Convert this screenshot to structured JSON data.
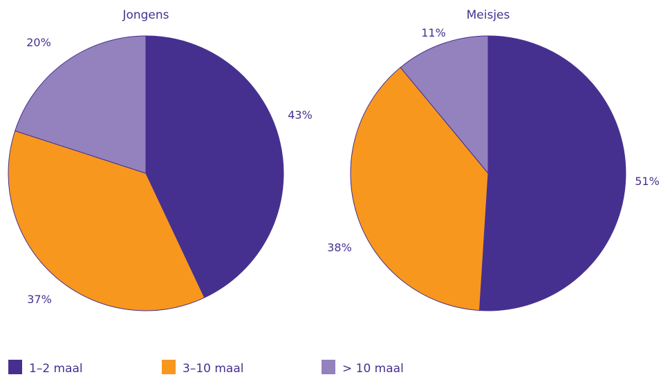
{
  "chart_data": [
    {
      "type": "pie",
      "title": "Jongens",
      "categories": [
        "1–2 maal",
        "3–10 maal",
        "> 10 maal"
      ],
      "values": [
        43,
        37,
        20
      ],
      "labels": [
        "43%",
        "37%",
        "20%"
      ]
    },
    {
      "type": "pie",
      "title": "Meisjes",
      "categories": [
        "1–2 maal",
        "3–10 maal",
        "> 10 maal"
      ],
      "values": [
        51,
        38,
        11
      ],
      "labels": [
        "51%",
        "38%",
        "11%"
      ]
    }
  ],
  "legend": {
    "placement": "bottom",
    "items": [
      {
        "label": "1–2 maal",
        "color": "#46308f"
      },
      {
        "label": "3–10 maal",
        "color": "#f7971e"
      },
      {
        "label": "> 10 maal",
        "color": "#9382bd"
      }
    ]
  },
  "colors": {
    "text": "#46308f",
    "slice_stroke": "#46308f"
  }
}
